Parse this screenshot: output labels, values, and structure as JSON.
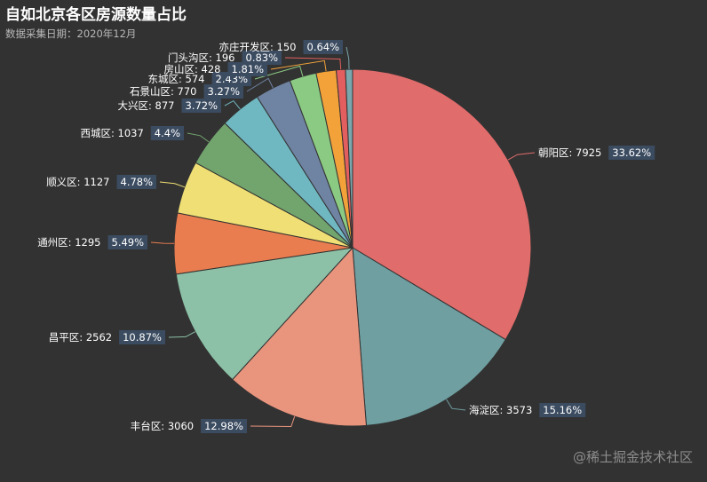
{
  "header": {
    "title": "自如北京各区房源数量占比",
    "subtitle": "数据采集日期：2020年12月"
  },
  "watermark": "@稀土掘金技术社区",
  "chart_data": {
    "type": "pie",
    "title": "自如北京各区房源数量占比",
    "subtitle": "数据采集日期：2020年12月",
    "slices": [
      {
        "name": "朝阳区",
        "value": 7925,
        "percent_label": "33.62%",
        "color": "#e06c6b"
      },
      {
        "name": "海淀区",
        "value": 3573,
        "percent_label": "15.16%",
        "color": "#6f9fa1"
      },
      {
        "name": "丰台区",
        "value": 3060,
        "percent_label": "12.98%",
        "color": "#e9957e"
      },
      {
        "name": "昌平区",
        "value": 2562,
        "percent_label": "10.87%",
        "color": "#8cc1a7"
      },
      {
        "name": "通州区",
        "value": 1295,
        "percent_label": "5.49%",
        "color": "#ea7d4f"
      },
      {
        "name": "顺义区",
        "value": 1127,
        "percent_label": "4.78%",
        "color": "#efdf74"
      },
      {
        "name": "西城区",
        "value": 1037,
        "percent_label": "4.4%",
        "color": "#72a46e"
      },
      {
        "name": "大兴区",
        "value": 877,
        "percent_label": "3.72%",
        "color": "#70b8c1"
      },
      {
        "name": "石景山区",
        "value": 770,
        "percent_label": "3.27%",
        "color": "#6f83a2"
      },
      {
        "name": "东城区",
        "value": 574,
        "percent_label": "2.43%",
        "color": "#8bca83"
      },
      {
        "name": "房山区",
        "value": 428,
        "percent_label": "1.81%",
        "color": "#f3a23a"
      },
      {
        "name": "门头沟区",
        "value": 196,
        "percent_label": "0.83%",
        "color": "#e35f5f"
      },
      {
        "name": "亦庄开发区",
        "value": 150,
        "percent_label": "0.64%",
        "color": "#7aa6ad"
      }
    ]
  }
}
